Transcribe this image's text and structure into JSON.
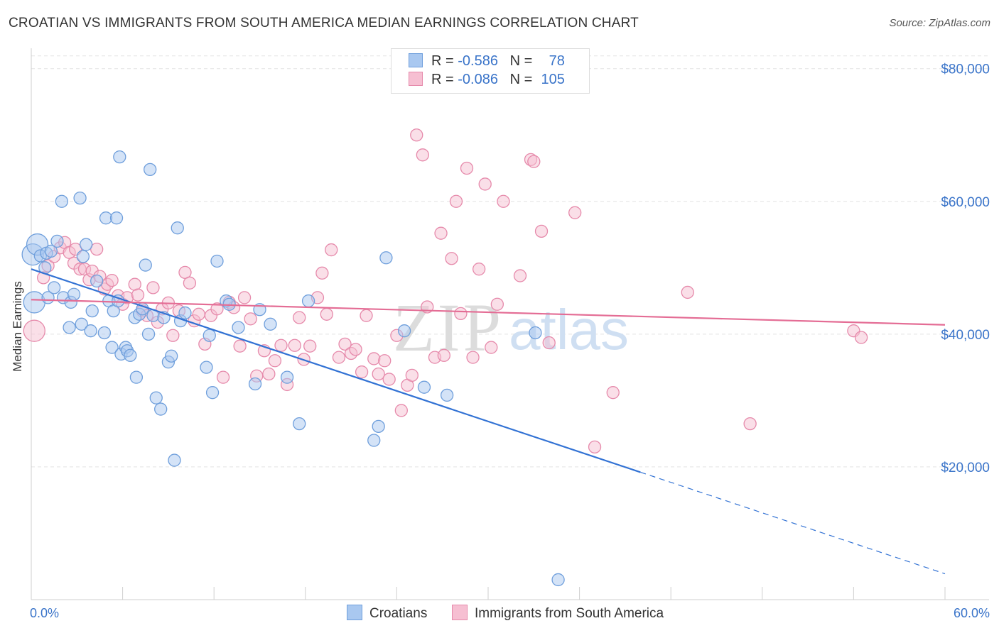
{
  "title": "CROATIAN VS IMMIGRANTS FROM SOUTH AMERICA MEDIAN EARNINGS CORRELATION CHART",
  "source": "Source: ZipAtlas.com",
  "watermark": {
    "zip": "ZIP",
    "atlas": "atlas"
  },
  "legend_top": {
    "rows": [
      {
        "r_label": "R =",
        "r_value": "-0.586",
        "n_label": "N =",
        "n_value": "78",
        "color": "#a9c8f0",
        "stroke": "#6f9fdc"
      },
      {
        "r_label": "R =",
        "r_value": "-0.086",
        "n_label": "N =",
        "n_value": "105",
        "color": "#f6bfd2",
        "stroke": "#e68aab"
      }
    ]
  },
  "legend_bottom": {
    "croatians": "Croatians",
    "immigrants": "Immigrants from South America"
  },
  "colors": {
    "blue_fill": "#a9c8f0",
    "blue_stroke": "#6f9fdc",
    "blue_line": "#3272d4",
    "pink_fill": "#f6bfd2",
    "pink_stroke": "#e68aab",
    "pink_line": "#e46d95",
    "grid": "#e3e3e3",
    "axis_text": "#3a74c9"
  },
  "chart_data": {
    "type": "scatter",
    "title": "CROATIAN VS IMMIGRANTS FROM SOUTH AMERICA MEDIAN EARNINGS CORRELATION CHART",
    "xlabel": "",
    "ylabel": "Median Earnings",
    "xlim": [
      0,
      60
    ],
    "ylim": [
      0,
      82000
    ],
    "x_tick_labels": [
      {
        "value": 0,
        "label": "0.0%"
      },
      {
        "value": 60,
        "label": "60.0%"
      }
    ],
    "y_ticks": [
      {
        "value": 20000,
        "label": "$20,000"
      },
      {
        "value": 40000,
        "label": "$40,000"
      },
      {
        "value": 60000,
        "label": "$60,000"
      },
      {
        "value": 80000,
        "label": "$80,000"
      }
    ],
    "series": [
      {
        "name": "Croatians",
        "r": -0.586,
        "n": 78,
        "trend": {
          "x0": 0,
          "y0": 49800,
          "x1": 40,
          "y1": 19200,
          "dash_to_x": 60,
          "dash_to_y": 3900
        },
        "points": [
          [
            0.1,
            52000
          ],
          [
            0.2,
            44800
          ],
          [
            0.4,
            53500
          ],
          [
            0.6,
            51800
          ],
          [
            0.9,
            50000
          ],
          [
            1.0,
            52200
          ],
          [
            1.1,
            45500
          ],
          [
            1.3,
            52500
          ],
          [
            1.5,
            47000
          ],
          [
            1.7,
            54000
          ],
          [
            2.0,
            60000
          ],
          [
            2.1,
            45500
          ],
          [
            2.5,
            41000
          ],
          [
            2.6,
            44800
          ],
          [
            2.8,
            46000
          ],
          [
            3.2,
            60500
          ],
          [
            3.3,
            41500
          ],
          [
            3.4,
            51700
          ],
          [
            3.6,
            53500
          ],
          [
            3.9,
            40500
          ],
          [
            4.0,
            43500
          ],
          [
            4.3,
            48000
          ],
          [
            4.8,
            40200
          ],
          [
            4.9,
            57500
          ],
          [
            5.1,
            45000
          ],
          [
            5.3,
            38000
          ],
          [
            5.4,
            43500
          ],
          [
            5.6,
            57500
          ],
          [
            5.7,
            45000
          ],
          [
            5.8,
            66700
          ],
          [
            5.9,
            37000
          ],
          [
            6.2,
            38000
          ],
          [
            6.3,
            37500
          ],
          [
            6.5,
            36800
          ],
          [
            6.8,
            42500
          ],
          [
            6.9,
            33500
          ],
          [
            7.1,
            43000
          ],
          [
            7.3,
            43800
          ],
          [
            7.5,
            50400
          ],
          [
            7.7,
            40000
          ],
          [
            7.8,
            64800
          ],
          [
            8.0,
            42800
          ],
          [
            8.2,
            30400
          ],
          [
            8.5,
            28700
          ],
          [
            8.7,
            42500
          ],
          [
            9.0,
            35800
          ],
          [
            9.2,
            36700
          ],
          [
            9.4,
            21000
          ],
          [
            9.6,
            56000
          ],
          [
            9.8,
            42000
          ],
          [
            10.1,
            43200
          ],
          [
            11.5,
            35000
          ],
          [
            11.7,
            39800
          ],
          [
            11.9,
            31200
          ],
          [
            12.2,
            51000
          ],
          [
            12.8,
            45000
          ],
          [
            13.0,
            44500
          ],
          [
            13.6,
            41000
          ],
          [
            14.7,
            32500
          ],
          [
            15.0,
            43700
          ],
          [
            15.7,
            41500
          ],
          [
            16.8,
            33500
          ],
          [
            17.6,
            26500
          ],
          [
            18.2,
            45000
          ],
          [
            22.5,
            24000
          ],
          [
            22.8,
            26100
          ],
          [
            23.3,
            51500
          ],
          [
            24.5,
            40500
          ],
          [
            25.8,
            32000
          ],
          [
            27.3,
            30800
          ],
          [
            33.1,
            40200
          ],
          [
            34.6,
            3000
          ]
        ]
      },
      {
        "name": "Immigrants from South America",
        "r": -0.086,
        "n": 105,
        "trend": {
          "x0": 0,
          "y0": 45200,
          "x1": 60,
          "y1": 41400
        },
        "points": [
          [
            0.2,
            40500
          ],
          [
            0.8,
            48500
          ],
          [
            1.1,
            50300
          ],
          [
            1.5,
            51700
          ],
          [
            1.9,
            53000
          ],
          [
            2.2,
            53800
          ],
          [
            2.5,
            52300
          ],
          [
            2.8,
            50700
          ],
          [
            2.9,
            52800
          ],
          [
            3.2,
            49800
          ],
          [
            3.5,
            49800
          ],
          [
            3.8,
            48200
          ],
          [
            4.0,
            49500
          ],
          [
            4.3,
            52800
          ],
          [
            4.5,
            48700
          ],
          [
            4.8,
            46800
          ],
          [
            5.0,
            47500
          ],
          [
            5.3,
            48100
          ],
          [
            5.7,
            45800
          ],
          [
            6.0,
            44500
          ],
          [
            6.3,
            45500
          ],
          [
            6.8,
            47500
          ],
          [
            7.0,
            45900
          ],
          [
            7.3,
            43500
          ],
          [
            7.6,
            42800
          ],
          [
            8.0,
            47000
          ],
          [
            8.3,
            41800
          ],
          [
            8.6,
            43800
          ],
          [
            9.0,
            44700
          ],
          [
            9.3,
            39800
          ],
          [
            9.7,
            43500
          ],
          [
            10.1,
            49300
          ],
          [
            10.4,
            47700
          ],
          [
            10.7,
            42000
          ],
          [
            11.0,
            43000
          ],
          [
            11.4,
            38500
          ],
          [
            11.8,
            42800
          ],
          [
            12.2,
            43800
          ],
          [
            12.6,
            33500
          ],
          [
            13.0,
            44800
          ],
          [
            13.3,
            44000
          ],
          [
            13.7,
            38200
          ],
          [
            14.0,
            45500
          ],
          [
            14.4,
            42300
          ],
          [
            14.8,
            33700
          ],
          [
            15.3,
            37500
          ],
          [
            15.6,
            34000
          ],
          [
            16.0,
            36000
          ],
          [
            16.4,
            38300
          ],
          [
            16.8,
            32400
          ],
          [
            17.3,
            38300
          ],
          [
            17.6,
            42500
          ],
          [
            17.9,
            36200
          ],
          [
            18.3,
            38200
          ],
          [
            18.8,
            45500
          ],
          [
            19.1,
            49200
          ],
          [
            19.4,
            43000
          ],
          [
            19.7,
            52700
          ],
          [
            20.2,
            36500
          ],
          [
            20.6,
            38500
          ],
          [
            21.0,
            37100
          ],
          [
            21.3,
            37700
          ],
          [
            21.7,
            34300
          ],
          [
            22.0,
            42800
          ],
          [
            22.5,
            36300
          ],
          [
            22.8,
            34000
          ],
          [
            23.2,
            36000
          ],
          [
            23.5,
            33200
          ],
          [
            24.0,
            39800
          ],
          [
            24.3,
            28500
          ],
          [
            24.7,
            32300
          ],
          [
            25.0,
            33800
          ],
          [
            25.3,
            70000
          ],
          [
            25.7,
            67000
          ],
          [
            26.0,
            44100
          ],
          [
            26.5,
            36500
          ],
          [
            26.9,
            55200
          ],
          [
            27.1,
            36800
          ],
          [
            27.6,
            51400
          ],
          [
            27.9,
            60000
          ],
          [
            28.2,
            43100
          ],
          [
            28.6,
            65000
          ],
          [
            29.0,
            36500
          ],
          [
            29.4,
            49800
          ],
          [
            29.8,
            62600
          ],
          [
            30.2,
            38000
          ],
          [
            30.6,
            44500
          ],
          [
            31.0,
            60000
          ],
          [
            32.1,
            48800
          ],
          [
            32.8,
            66300
          ],
          [
            33.0,
            66000
          ],
          [
            33.5,
            55500
          ],
          [
            34.0,
            38700
          ],
          [
            35.7,
            58300
          ],
          [
            37.0,
            23000
          ],
          [
            38.2,
            31200
          ],
          [
            43.1,
            46300
          ],
          [
            47.2,
            26500
          ],
          [
            54.0,
            40500
          ],
          [
            54.5,
            39500
          ]
        ]
      }
    ]
  }
}
